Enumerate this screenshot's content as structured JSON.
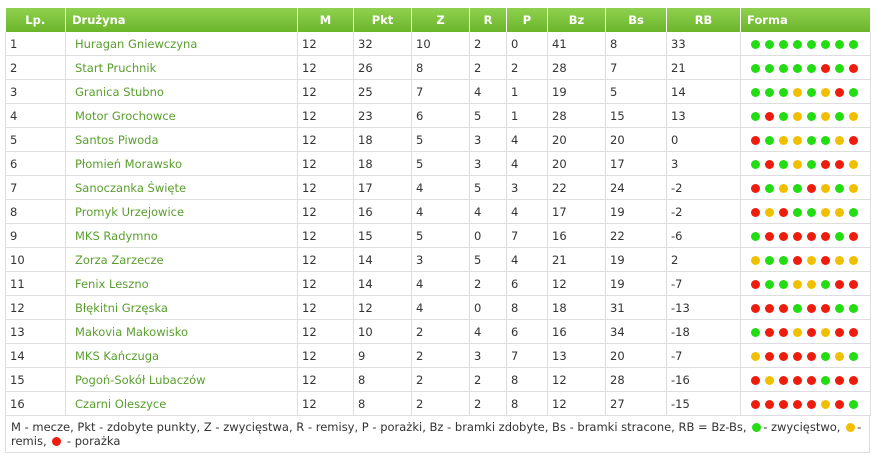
{
  "headers": [
    "Lp.",
    "Drużyna",
    "M",
    "Pkt",
    "Z",
    "R",
    "P",
    "Bz",
    "Bs",
    "RB",
    "Forma"
  ],
  "colors": {
    "W": "#22dd11",
    "D": "#f0c000",
    "L": "#ee1c0c",
    "header": "#7cc23a",
    "team": "#5a9e2e"
  },
  "rows": [
    {
      "lp": "1",
      "team": "Huragan Gniewczyna",
      "m": "12",
      "pkt": "32",
      "z": "10",
      "r": "2",
      "p": "0",
      "bz": "41",
      "bs": "8",
      "rb": "33",
      "form": "WWWWWWWW"
    },
    {
      "lp": "2",
      "team": "Start Pruchnik",
      "m": "12",
      "pkt": "26",
      "z": "8",
      "r": "2",
      "p": "2",
      "bz": "28",
      "bs": "7",
      "rb": "21",
      "form": "WWWWWLWL"
    },
    {
      "lp": "3",
      "team": "Granica Stubno",
      "m": "12",
      "pkt": "25",
      "z": "7",
      "r": "4",
      "p": "1",
      "bz": "19",
      "bs": "5",
      "rb": "14",
      "form": "WWWDWDLW"
    },
    {
      "lp": "4",
      "team": "Motor Grochowce",
      "m": "12",
      "pkt": "23",
      "z": "6",
      "r": "5",
      "p": "1",
      "bz": "28",
      "bs": "15",
      "rb": "13",
      "form": "WLWDWDWD"
    },
    {
      "lp": "5",
      "team": "Santos Piwoda",
      "m": "12",
      "pkt": "18",
      "z": "5",
      "r": "3",
      "p": "4",
      "bz": "20",
      "bs": "20",
      "rb": "0",
      "form": "LWDDWWDL"
    },
    {
      "lp": "6",
      "team": "Płomień Morawsko",
      "m": "12",
      "pkt": "18",
      "z": "5",
      "r": "3",
      "p": "4",
      "bz": "20",
      "bs": "17",
      "rb": "3",
      "form": "WLWDWLLD"
    },
    {
      "lp": "7",
      "team": "Sanoczanka Święte",
      "m": "12",
      "pkt": "17",
      "z": "4",
      "r": "5",
      "p": "3",
      "bz": "22",
      "bs": "24",
      "rb": "-2",
      "form": "LWDWLDWD"
    },
    {
      "lp": "8",
      "team": "Promyk Urzejowice",
      "m": "12",
      "pkt": "16",
      "z": "4",
      "r": "4",
      "p": "4",
      "bz": "17",
      "bs": "19",
      "rb": "-2",
      "form": "LDLWWDDW"
    },
    {
      "lp": "9",
      "team": "MKS Radymno",
      "m": "12",
      "pkt": "15",
      "z": "5",
      "r": "0",
      "p": "7",
      "bz": "16",
      "bs": "22",
      "rb": "-6",
      "form": "WLLLLLWL"
    },
    {
      "lp": "10",
      "team": "Zorza Zarzecze",
      "m": "12",
      "pkt": "14",
      "z": "3",
      "r": "5",
      "p": "4",
      "bz": "21",
      "bs": "19",
      "rb": "2",
      "form": "DWWLDLDD"
    },
    {
      "lp": "11",
      "team": "Fenix Leszno",
      "m": "12",
      "pkt": "14",
      "z": "4",
      "r": "2",
      "p": "6",
      "bz": "12",
      "bs": "19",
      "rb": "-7",
      "form": "LWWDDWLL"
    },
    {
      "lp": "12",
      "team": "Błękitni Grzęska",
      "m": "12",
      "pkt": "12",
      "z": "4",
      "r": "0",
      "p": "8",
      "bz": "18",
      "bs": "31",
      "rb": "-13",
      "form": "LLLWLLWW"
    },
    {
      "lp": "13",
      "team": "Makovia Makowisko",
      "m": "12",
      "pkt": "10",
      "z": "2",
      "r": "4",
      "p": "6",
      "bz": "16",
      "bs": "34",
      "rb": "-18",
      "form": "WLLDLDLL"
    },
    {
      "lp": "14",
      "team": "MKS Kańczuga",
      "m": "12",
      "pkt": "9",
      "z": "2",
      "r": "3",
      "p": "7",
      "bz": "13",
      "bs": "20",
      "rb": "-7",
      "form": "DLLLLWDW"
    },
    {
      "lp": "15",
      "team": "Pogoń-Sokół Lubaczów",
      "m": "12",
      "pkt": "8",
      "z": "2",
      "r": "2",
      "p": "8",
      "bz": "12",
      "bs": "28",
      "rb": "-16",
      "form": "LDLLLWLL"
    },
    {
      "lp": "16",
      "team": "Czarni Oleszyce",
      "m": "12",
      "pkt": "8",
      "z": "2",
      "r": "2",
      "p": "8",
      "bz": "12",
      "bs": "27",
      "rb": "-15",
      "form": "LLLLLDLW"
    }
  ],
  "legend": {
    "text": "M - mecze, Pkt - zdobyte punkty, Z - zwycięstwa, R - remisy, P - porażki, Bz - bramki zdobyte, Bs - bramki stracone, RB = Bz-Bs,",
    "win": "- zwycięstwo,",
    "draw": "- remis,",
    "loss": "- porażka"
  }
}
